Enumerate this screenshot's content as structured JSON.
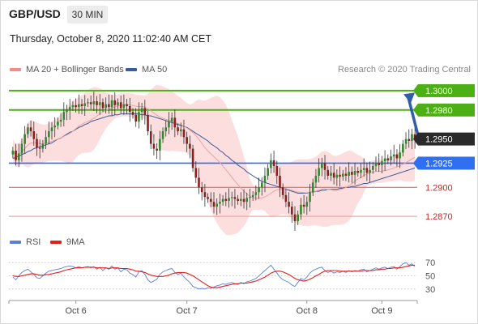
{
  "header": {
    "pair": "GBP/USD",
    "timeframe": "30 MIN",
    "datetime": "Thursday, October 8, 2020 11:02:40 AM CET"
  },
  "legend": {
    "ma20_label": "MA 20 + Bollinger Bands",
    "ma50_label": "MA 50",
    "ma20_color": "#f28b8b",
    "ma50_color": "#3b5b9a",
    "credit": "Research © 2020 Trading Central"
  },
  "rsi_legend": {
    "rsi_label": "RSI",
    "ma9_label": "9MA",
    "rsi_color": "#5b7fd6",
    "ma9_color": "#e0201b"
  },
  "chart_data": [
    {
      "type": "candlestick",
      "ylim": [
        1.2855,
        1.301
      ],
      "x_ticks": [
        "Oct 6",
        "Oct 7",
        "Oct 8",
        "Oct 9"
      ],
      "price_levels": [
        {
          "value": "1.3000",
          "role": "target",
          "color": "#4caf14"
        },
        {
          "value": "1.2980",
          "role": "resistance",
          "color": "#4caf14"
        },
        {
          "value": "1.2950",
          "role": "last-price",
          "color": "#222222"
        },
        {
          "value": "1.2925",
          "role": "pivot",
          "color": "#2f6ff0"
        },
        {
          "value": "1.2900",
          "role": "support",
          "color": "#e36a6a"
        },
        {
          "value": "1.2870",
          "role": "support",
          "color": "#f5a3a3"
        }
      ],
      "projection": {
        "from": 1.295,
        "to": 1.2998
      },
      "close": [
        1.2938,
        1.2928,
        1.2935,
        1.2945,
        1.2955,
        1.2962,
        1.2958,
        1.295,
        1.2941,
        1.294,
        1.2945,
        1.2952,
        1.2958,
        1.2962,
        1.2964,
        1.2968,
        1.297,
        1.2978,
        1.298,
        1.2983,
        1.2985,
        1.2983,
        1.2986,
        1.2984,
        1.2987,
        1.2988,
        1.2986,
        1.2989,
        1.2985,
        1.2988,
        1.2982,
        1.2986,
        1.2983,
        1.299,
        1.2985,
        1.2988,
        1.2982,
        1.2986,
        1.2984,
        1.2978,
        1.2975,
        1.2968,
        1.2978,
        1.2982,
        1.2975,
        1.2958,
        1.2945,
        1.294,
        1.2938,
        1.295,
        1.2958,
        1.2962,
        1.2968,
        1.2972,
        1.2962,
        1.2958,
        1.296,
        1.2952,
        1.2945,
        1.294,
        1.292,
        1.291,
        1.29,
        1.2895,
        1.289,
        1.2888,
        1.2885,
        1.288,
        1.2883,
        1.2885,
        1.2888,
        1.2886,
        1.2889,
        1.289,
        1.2888,
        1.2886,
        1.2888,
        1.2885,
        1.2889,
        1.289,
        1.2892,
        1.2895,
        1.29,
        1.2905,
        1.2912,
        1.292,
        1.2928,
        1.2922,
        1.2912,
        1.29,
        1.2892,
        1.2885,
        1.288,
        1.2872,
        1.2865,
        1.2872,
        1.2882,
        1.288,
        1.2885,
        1.2895,
        1.2905,
        1.2912,
        1.292,
        1.2925,
        1.2918,
        1.2912,
        1.2915,
        1.291,
        1.2913,
        1.2911,
        1.2914,
        1.2912,
        1.2916,
        1.2913,
        1.2917,
        1.2915,
        1.2918,
        1.292,
        1.2915,
        1.2918,
        1.2922,
        1.2925,
        1.2923,
        1.2927,
        1.293,
        1.2928,
        1.2932,
        1.2934,
        1.293,
        1.2936,
        1.2945,
        1.295,
        1.2948,
        1.2955,
        1.295
      ],
      "ma50": [
        1.293,
        1.2931,
        1.2932,
        1.2934,
        1.2935,
        1.2937,
        1.2938,
        1.294,
        1.2941,
        1.2942,
        1.2943,
        1.2944,
        1.2945,
        1.2946,
        1.2948,
        1.295,
        1.2951,
        1.2953,
        1.2955,
        1.2957,
        1.2958,
        1.296,
        1.2962,
        1.2963,
        1.2965,
        1.2966,
        1.2968,
        1.2969,
        1.297,
        1.2971,
        1.2972,
        1.2973,
        1.2974,
        1.2974,
        1.2975,
        1.2975,
        1.2976,
        1.2976,
        1.2976,
        1.2976,
        1.2976,
        1.2976,
        1.2976,
        1.2975,
        1.2975,
        1.2974,
        1.2974,
        1.2973,
        1.2972,
        1.2971,
        1.297,
        1.2969,
        1.2968,
        1.2967,
        1.2966,
        1.2965,
        1.2964,
        1.2963,
        1.2962,
        1.296,
        1.2958,
        1.2956,
        1.2954,
        1.2952,
        1.295,
        1.2948,
        1.2945,
        1.2943,
        1.2941,
        1.2938,
        1.2936,
        1.2933,
        1.2931,
        1.2928,
        1.2926,
        1.2923,
        1.2921,
        1.2919,
        1.2916,
        1.2914,
        1.2912,
        1.291,
        1.2908,
        1.2906,
        1.2905,
        1.2904,
        1.2903,
        1.2902,
        1.2901,
        1.29,
        1.2899,
        1.2898,
        1.2897,
        1.2896,
        1.2895,
        1.2894,
        1.2894,
        1.2894,
        1.2894,
        1.2895,
        1.2895,
        1.2896,
        1.2896,
        1.2897,
        1.2897,
        1.2898,
        1.2898,
        1.2898,
        1.2898,
        1.2899,
        1.2899,
        1.29,
        1.29,
        1.2901,
        1.2901,
        1.2902,
        1.2903,
        1.2904,
        1.2904,
        1.2905,
        1.2906,
        1.2907,
        1.2908,
        1.2909,
        1.291,
        1.2911,
        1.2912,
        1.2913,
        1.2914,
        1.2915,
        1.2916,
        1.2917,
        1.2918,
        1.2919,
        1.292
      ],
      "rsi_ylim": [
        20,
        80
      ],
      "rsi_ticks": [
        "70",
        "50",
        "30"
      ],
      "rsi": [
        48,
        44,
        50,
        55,
        58,
        60,
        56,
        52,
        47,
        46,
        50,
        54,
        57,
        58,
        59,
        60,
        61,
        63,
        64,
        65,
        64,
        62,
        64,
        62,
        63,
        64,
        62,
        64,
        60,
        63,
        58,
        62,
        60,
        65,
        60,
        62,
        56,
        60,
        59,
        54,
        52,
        48,
        56,
        58,
        52,
        44,
        40,
        42,
        45,
        52,
        56,
        58,
        60,
        61,
        55,
        52,
        54,
        48,
        44,
        40,
        34,
        32,
        30,
        31,
        30,
        32,
        31,
        33,
        35,
        36,
        38,
        37,
        39,
        40,
        38,
        37,
        40,
        38,
        41,
        42,
        44,
        46,
        50,
        54,
        58,
        62,
        66,
        60,
        54,
        48,
        44,
        42,
        40,
        36,
        34,
        40,
        46,
        44,
        48,
        54,
        58,
        60,
        62,
        63,
        58,
        55,
        57,
        54,
        56,
        55,
        57,
        55,
        58,
        56,
        58,
        57,
        59,
        60,
        56,
        58,
        60,
        62,
        60,
        62,
        63,
        61,
        63,
        64,
        60,
        64,
        68,
        70,
        66,
        68,
        64
      ],
      "rsi_ma9": [
        50,
        49,
        49,
        50,
        51,
        52,
        53,
        53,
        52,
        51,
        51,
        52,
        52,
        53,
        54,
        55,
        56,
        58,
        59,
        60,
        61,
        62,
        62,
        62,
        63,
        63,
        63,
        63,
        62,
        62,
        62,
        62,
        61,
        62,
        62,
        62,
        61,
        61,
        61,
        60,
        59,
        57,
        57,
        56,
        55,
        53,
        51,
        50,
        49,
        49,
        49,
        50,
        51,
        53,
        54,
        55,
        55,
        55,
        54,
        52,
        50,
        47,
        44,
        41,
        38,
        35,
        33,
        32,
        32,
        33,
        34,
        35,
        36,
        37,
        38,
        38,
        39,
        39,
        39,
        40,
        41,
        42,
        44,
        46,
        48,
        51,
        54,
        56,
        57,
        57,
        56,
        54,
        52,
        49,
        46,
        44,
        43,
        42,
        43,
        45,
        47,
        50,
        52,
        55,
        57,
        58,
        58,
        58,
        58,
        57,
        57,
        57,
        57,
        57,
        57,
        57,
        57,
        58,
        58,
        58,
        58,
        59,
        59,
        60,
        60,
        61,
        61,
        62,
        62,
        62,
        63,
        64,
        65,
        66,
        66
      ]
    }
  ]
}
